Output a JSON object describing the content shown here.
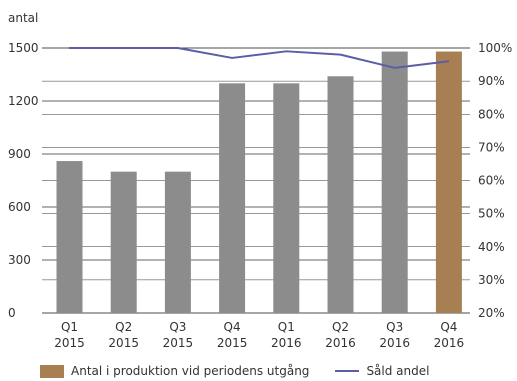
{
  "chart_data": {
    "type": "bar",
    "y_left_label": "antal",
    "categories": [
      {
        "q": "Q1",
        "year": "2015"
      },
      {
        "q": "Q2",
        "year": "2015"
      },
      {
        "q": "Q3",
        "year": "2015"
      },
      {
        "q": "Q4",
        "year": "2015"
      },
      {
        "q": "Q1",
        "year": "2016"
      },
      {
        "q": "Q2",
        "year": "2016"
      },
      {
        "q": "Q3",
        "year": "2016"
      },
      {
        "q": "Q4",
        "year": "2016"
      }
    ],
    "series": [
      {
        "name": "Antal i produktion vid periodens utgång",
        "kind": "bar",
        "axis": "left",
        "values": [
          860,
          800,
          800,
          1300,
          1300,
          1340,
          1480,
          1480
        ],
        "colors": [
          "#8c8c8c",
          "#8c8c8c",
          "#8c8c8c",
          "#8c8c8c",
          "#8c8c8c",
          "#8c8c8c",
          "#8c8c8c",
          "#a77f52"
        ]
      },
      {
        "name": "Såld andel",
        "kind": "line",
        "axis": "right",
        "values": [
          100,
          100,
          100,
          97,
          99,
          98,
          94,
          96
        ],
        "color": "#5b5ea6"
      }
    ],
    "y_left": {
      "min": 0,
      "max": 1500,
      "ticks": [
        "0",
        "300",
        "600",
        "900",
        "1200",
        "1500"
      ]
    },
    "y_right": {
      "min": 20,
      "max": 100,
      "ticks": [
        "20%",
        "30%",
        "40%",
        "50%",
        "60%",
        "70%",
        "80%",
        "90%",
        "100%"
      ]
    },
    "grid": true,
    "legend_position": "bottom-left"
  }
}
